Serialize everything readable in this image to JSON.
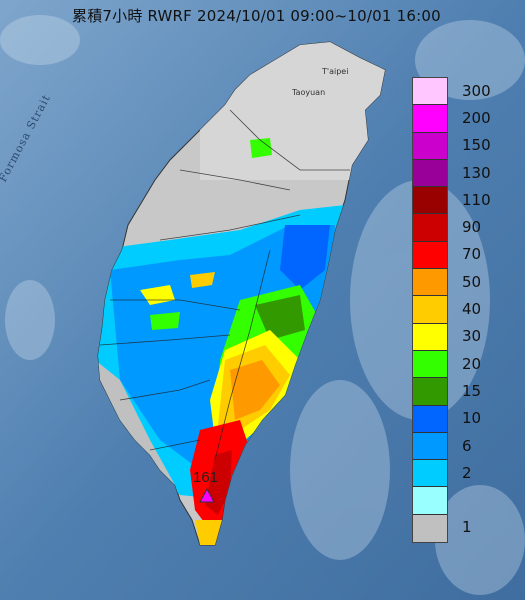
{
  "map": {
    "title": "累積7小時 RWRF 2024/10/01 09:00~10/01 16:00",
    "sea_label": "Formosa Strait",
    "city_labels": [
      "T'aipei",
      "Taoyuan"
    ],
    "max_marker": {
      "value": "161",
      "color": "#ff00ff",
      "icon": "triangle-marker-icon"
    }
  },
  "legend": {
    "items": [
      {
        "label": "300",
        "color": "#ffc6ff"
      },
      {
        "label": "200",
        "color": "#ff00ff"
      },
      {
        "label": "150",
        "color": "#cc00cc"
      },
      {
        "label": "130",
        "color": "#990099"
      },
      {
        "label": "110",
        "color": "#990000"
      },
      {
        "label": "90",
        "color": "#cc0000"
      },
      {
        "label": "70",
        "color": "#ff0000"
      },
      {
        "label": "50",
        "color": "#ff9900"
      },
      {
        "label": "40",
        "color": "#ffcc00"
      },
      {
        "label": "30",
        "color": "#ffff00"
      },
      {
        "label": "20",
        "color": "#33ff00"
      },
      {
        "label": "15",
        "color": "#339900"
      },
      {
        "label": "10",
        "color": "#0066ff"
      },
      {
        "label": "6",
        "color": "#0099ff"
      },
      {
        "label": "2",
        "color": "#00ccff"
      },
      {
        "label": "",
        "color": "#99ffff"
      },
      {
        "label": "1",
        "color": "#c0c0c0"
      }
    ]
  }
}
